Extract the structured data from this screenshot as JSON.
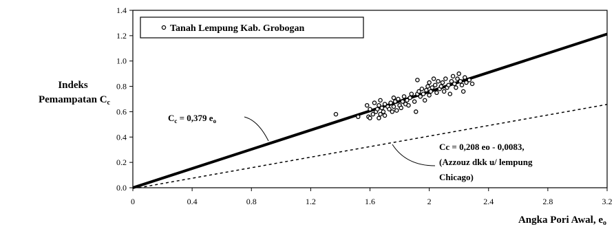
{
  "chart_data": {
    "type": "scatter",
    "title": "",
    "xlabel": "Angka Pori Awal, e",
    "xlabel_sub": "o",
    "ylabel_line1": "Indeks",
    "ylabel_line2": "Pemampatan C",
    "ylabel_sub": "c",
    "xlim": [
      0,
      3.2
    ],
    "ylim": [
      0,
      1.4
    ],
    "x_ticks": [
      "0",
      "0.4",
      "0.8",
      "1.2",
      "1.6",
      "2",
      "2.4",
      "2.8",
      "3.2"
    ],
    "y_ticks": [
      "0.0",
      "0.2",
      "0.4",
      "0.6",
      "0.8",
      "1.0",
      "1.2",
      "1.4"
    ],
    "grid": false,
    "legend_position": "top-left",
    "series": [
      {
        "name": "Tanah Lempung Kab. Grobogan",
        "marker": "open-circle",
        "points": [
          [
            1.37,
            0.58
          ],
          [
            1.52,
            0.56
          ],
          [
            1.58,
            0.65
          ],
          [
            1.59,
            0.56
          ],
          [
            1.6,
            0.62
          ],
          [
            1.6,
            0.55
          ],
          [
            1.62,
            0.58
          ],
          [
            1.63,
            0.67
          ],
          [
            1.64,
            0.6
          ],
          [
            1.65,
            0.62
          ],
          [
            1.66,
            0.55
          ],
          [
            1.66,
            0.65
          ],
          [
            1.67,
            0.69
          ],
          [
            1.67,
            0.58
          ],
          [
            1.68,
            0.63
          ],
          [
            1.69,
            0.6
          ],
          [
            1.7,
            0.66
          ],
          [
            1.7,
            0.57
          ],
          [
            1.72,
            0.64
          ],
          [
            1.73,
            0.62
          ],
          [
            1.74,
            0.67
          ],
          [
            1.75,
            0.6
          ],
          [
            1.76,
            0.71
          ],
          [
            1.76,
            0.64
          ],
          [
            1.77,
            0.68
          ],
          [
            1.78,
            0.61
          ],
          [
            1.79,
            0.7
          ],
          [
            1.8,
            0.65
          ],
          [
            1.81,
            0.63
          ],
          [
            1.82,
            0.68
          ],
          [
            1.83,
            0.72
          ],
          [
            1.84,
            0.66
          ],
          [
            1.85,
            0.69
          ],
          [
            1.86,
            0.65
          ],
          [
            1.87,
            0.71
          ],
          [
            1.88,
            0.74
          ],
          [
            1.9,
            0.68
          ],
          [
            1.91,
            0.6
          ],
          [
            1.92,
            0.85
          ],
          [
            1.92,
            0.74
          ],
          [
            1.93,
            0.76
          ],
          [
            1.94,
            0.72
          ],
          [
            1.95,
            0.78
          ],
          [
            1.96,
            0.74
          ],
          [
            1.97,
            0.69
          ],
          [
            1.98,
            0.77
          ],
          [
            1.99,
            0.8
          ],
          [
            2.0,
            0.73
          ],
          [
            2.0,
            0.83
          ],
          [
            2.01,
            0.76
          ],
          [
            2.02,
            0.79
          ],
          [
            2.03,
            0.86
          ],
          [
            2.04,
            0.81
          ],
          [
            2.05,
            0.75
          ],
          [
            2.06,
            0.84
          ],
          [
            2.07,
            0.78
          ],
          [
            2.08,
            0.8
          ],
          [
            2.09,
            0.83
          ],
          [
            2.1,
            0.76
          ],
          [
            2.11,
            0.86
          ],
          [
            2.12,
            0.79
          ],
          [
            2.13,
            0.81
          ],
          [
            2.14,
            0.74
          ],
          [
            2.15,
            0.84
          ],
          [
            2.16,
            0.88
          ],
          [
            2.17,
            0.82
          ],
          [
            2.18,
            0.79
          ],
          [
            2.19,
            0.86
          ],
          [
            2.2,
            0.9
          ],
          [
            2.21,
            0.84
          ],
          [
            2.22,
            0.81
          ],
          [
            2.23,
            0.76
          ],
          [
            2.24,
            0.87
          ],
          [
            2.25,
            0.83
          ],
          [
            2.27,
            0.85
          ],
          [
            2.29,
            0.82
          ]
        ]
      }
    ],
    "lines": [
      {
        "label": "C = 0,379 e",
        "slope": 0.379,
        "intercept": 0,
        "style": "solid"
      },
      {
        "label": "Cc = 0,208 eo - 0,0083,",
        "slope": 0.208,
        "intercept": -0.0083,
        "style": "dashed"
      }
    ],
    "annotations": {
      "legend_label": "Tanah Lempung Kab. Grobogan",
      "eq1_main_c": "C",
      "eq1_sub_c": "c",
      "eq1_mid": " = 0,379 e",
      "eq1_sub_o": "o",
      "eq2_line1": "Cc = 0,208 eo - 0,0083,",
      "eq2_line2": "(Azzouz dkk u/ lempung",
      "eq2_line3": "Chicago)"
    }
  }
}
